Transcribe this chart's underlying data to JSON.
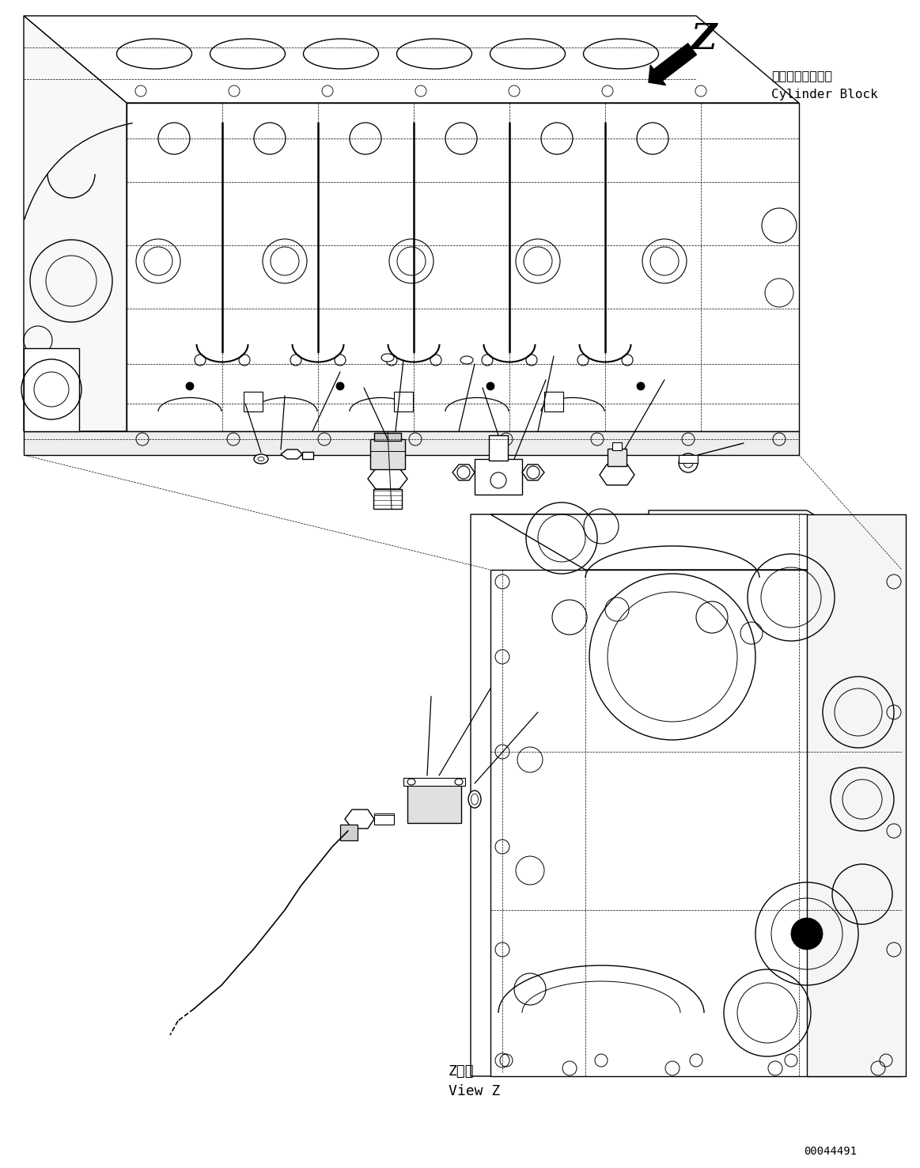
{
  "bg_color": "#ffffff",
  "fig_width": 11.63,
  "fig_height": 14.76,
  "dpi": 100,
  "label_z": "Z",
  "label_cylinder_block_jp": "シリンダブロック",
  "label_cylinder_block_en": "Cylinder Block",
  "label_view_z_jp": "Z　視",
  "label_view_z_en": "View Z",
  "doc_number": "00044491",
  "line_color": "#000000",
  "lw_main": 1.0,
  "lw_thin": 0.5,
  "lw_thick": 1.5
}
